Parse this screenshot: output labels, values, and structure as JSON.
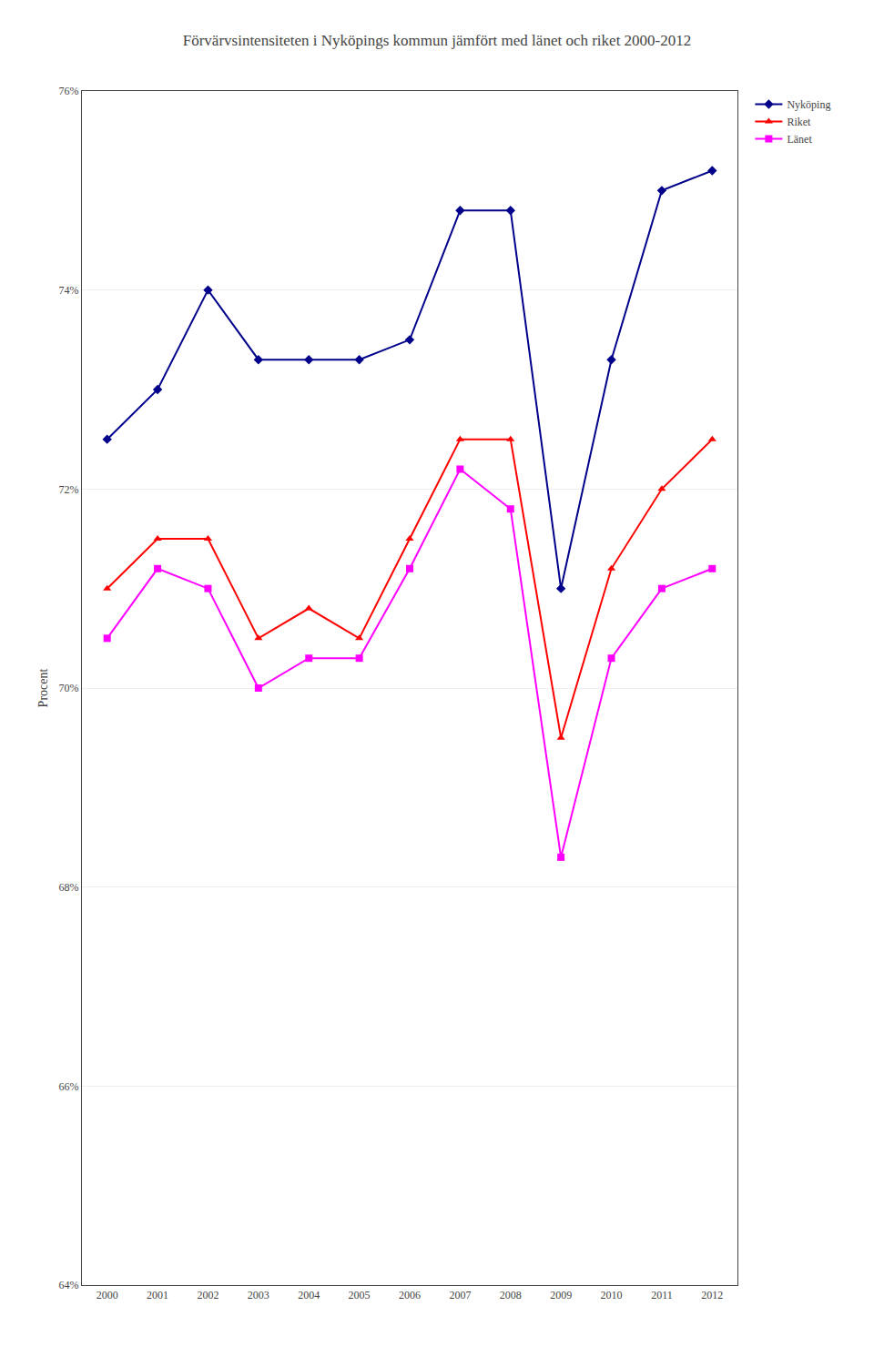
{
  "chart_data": {
    "type": "line",
    "title": "Förvärvsintensiteten i Nyköpings kommun jämfört med länet och riket 2000-2012",
    "y_label": "Procent",
    "x": [
      2000,
      2001,
      2002,
      2003,
      2004,
      2005,
      2006,
      2007,
      2008,
      2009,
      2010,
      2011,
      2012
    ],
    "series": [
      {
        "name": "Nyköping",
        "color": "#00008B",
        "marker": "diamond",
        "values": [
          72.5,
          73.0,
          74.0,
          73.3,
          73.3,
          73.3,
          73.5,
          74.8,
          74.8,
          71.0,
          73.3,
          75.0,
          75.2
        ]
      },
      {
        "name": "Riket",
        "color": "#FF0000",
        "marker": "triangle-up",
        "values": [
          71.0,
          71.5,
          71.5,
          70.5,
          70.8,
          70.5,
          71.5,
          72.5,
          72.5,
          69.5,
          71.2,
          72.0,
          72.5
        ]
      },
      {
        "name": "Länet",
        "color": "#FF00FF",
        "marker": "square",
        "values": [
          70.5,
          71.2,
          71.0,
          70.0,
          70.3,
          70.3,
          71.2,
          72.2,
          71.8,
          68.3,
          70.3,
          71.0,
          71.2
        ]
      }
    ],
    "xlim": [
      1999.5,
      2012.5
    ],
    "xticks": [
      2000,
      2001,
      2002,
      2003,
      2004,
      2005,
      2006,
      2007,
      2008,
      2009,
      2010,
      2011,
      2012
    ],
    "ylim": [
      64,
      76
    ],
    "yticks": [
      {
        "value": 64,
        "label": "64%"
      },
      {
        "value": 66,
        "label": "66%"
      },
      {
        "value": 68,
        "label": "68%"
      },
      {
        "value": 70,
        "label": "70%"
      },
      {
        "value": 72,
        "label": "72%"
      },
      {
        "value": 74,
        "label": "74%"
      },
      {
        "value": 76,
        "label": "76%"
      }
    ],
    "grid": "y",
    "legend": "right"
  }
}
